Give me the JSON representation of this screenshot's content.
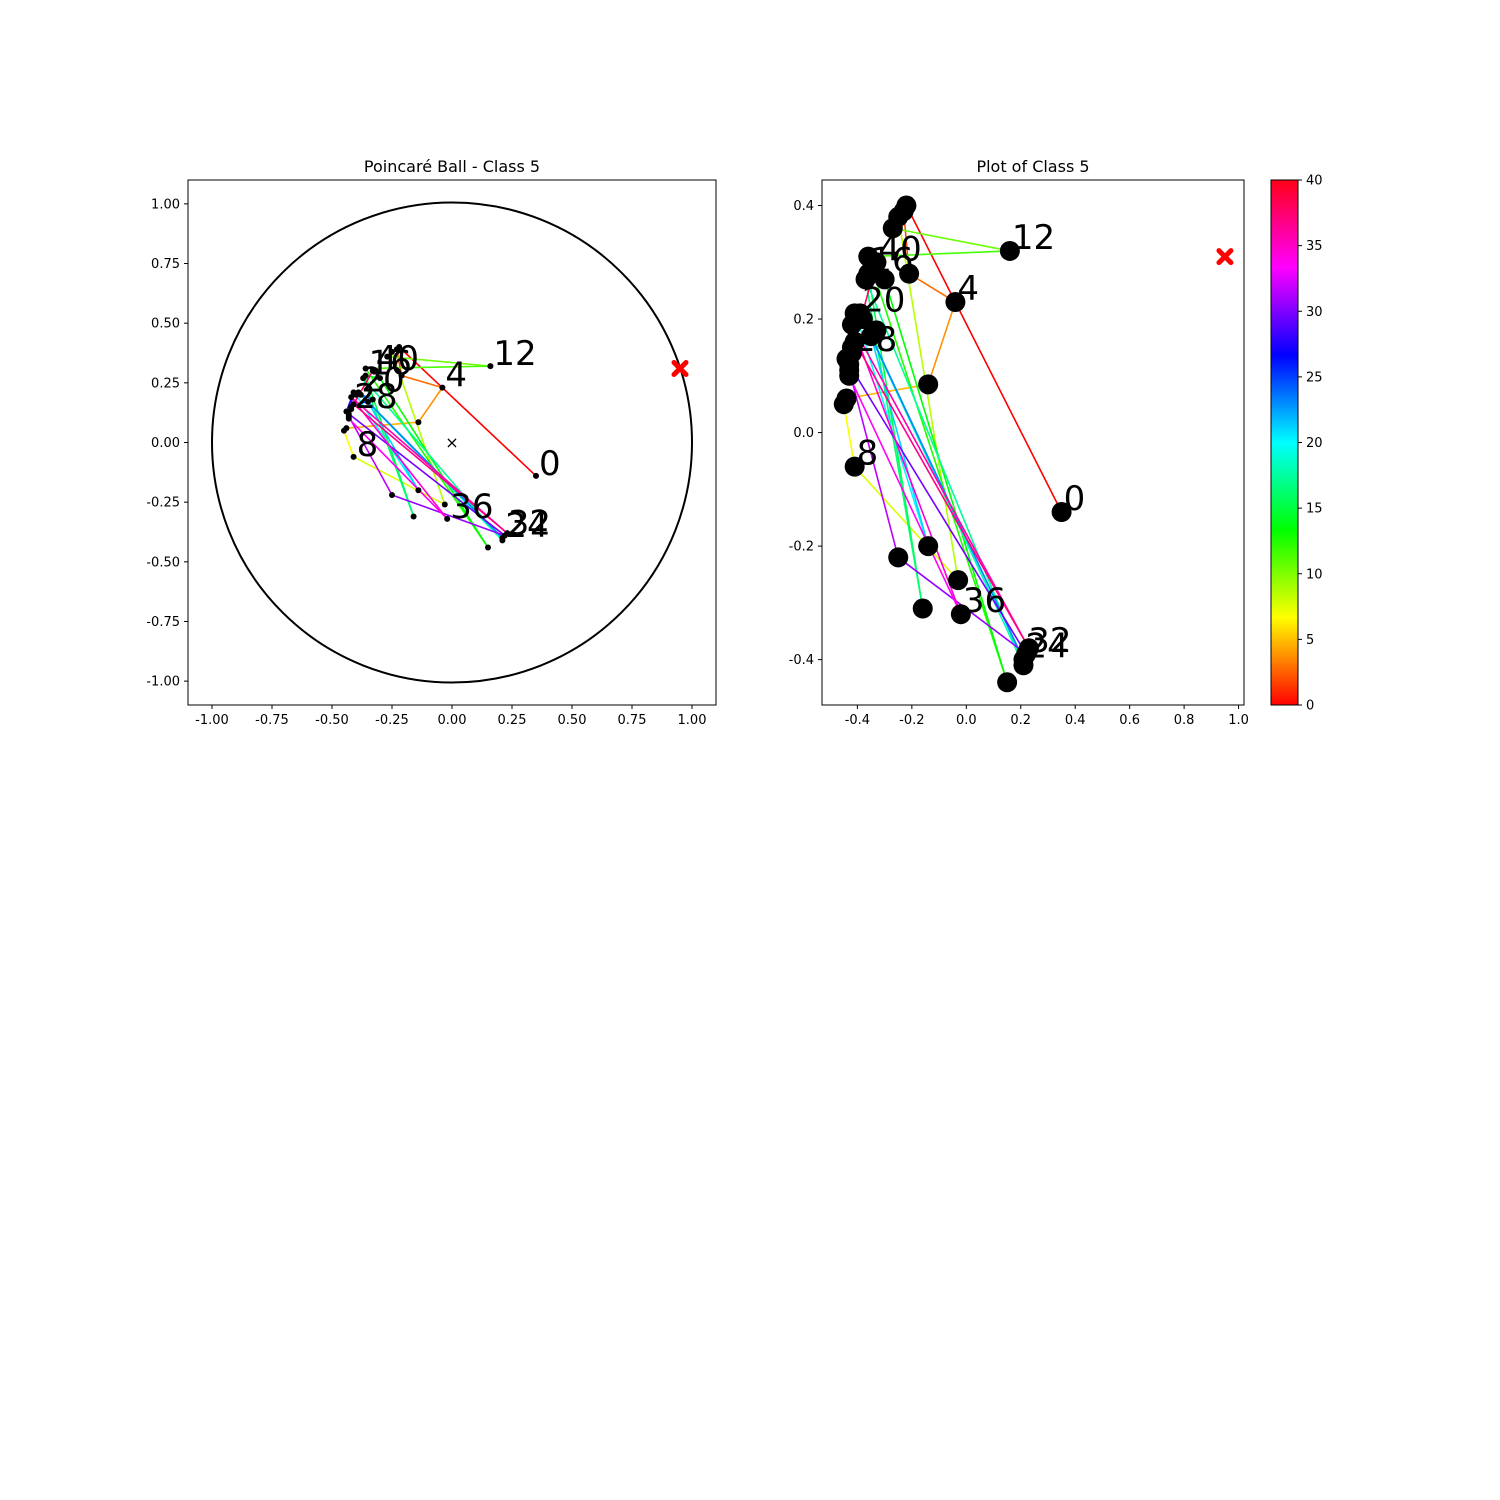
{
  "figure": {
    "background": "#ffffff",
    "colormap": "hsv",
    "marker_color": "#000000",
    "target_color": "#ff0000"
  },
  "chart_data": [
    {
      "type": "scatter",
      "title": "Poincaré Ball - Class 5",
      "xlabel": "",
      "ylabel": "",
      "xlim": [
        -1.1,
        1.1
      ],
      "ylim": [
        -1.1,
        1.1
      ],
      "xticks": [
        "-1.00",
        "-0.75",
        "-0.50",
        "-0.25",
        "0.00",
        "0.25",
        "0.50",
        "0.75",
        "1.00"
      ],
      "yticks": [
        "-1.00",
        "-0.75",
        "-0.50",
        "-0.25",
        "0.00",
        "0.25",
        "0.50",
        "0.75",
        "1.00"
      ],
      "grid": false,
      "unit_circle": true,
      "origin_marker": "x",
      "target_point": {
        "x": 0.95,
        "y": 0.31
      },
      "point_labels_every": 4
    },
    {
      "type": "scatter",
      "title": "Plot of Class 5",
      "xlabel": "",
      "ylabel": "",
      "xlim": [
        -0.53,
        1.02
      ],
      "ylim": [
        -0.48,
        0.445
      ],
      "xticks": [
        "-0.4",
        "-0.2",
        "0.0",
        "0.2",
        "0.4",
        "0.6",
        "0.8",
        "1.0"
      ],
      "yticks": [
        "-0.4",
        "-0.2",
        "0.0",
        "0.2",
        "0.4"
      ],
      "grid": false,
      "target_point": {
        "x": 0.95,
        "y": 0.31
      },
      "point_labels_every": 4,
      "colorbar": {
        "min": 0,
        "max": 40,
        "ticks": [
          "0",
          "5",
          "10",
          "15",
          "20",
          "25",
          "30",
          "35",
          "40"
        ]
      }
    }
  ],
  "trajectory": {
    "points": [
      {
        "i": 0,
        "x": 0.35,
        "y": -0.14
      },
      {
        "i": 1,
        "x": -0.22,
        "y": 0.4
      },
      {
        "i": 2,
        "x": -0.23,
        "y": 0.39
      },
      {
        "i": 3,
        "x": -0.21,
        "y": 0.28
      },
      {
        "i": 4,
        "x": -0.04,
        "y": 0.23
      },
      {
        "i": 5,
        "x": -0.14,
        "y": 0.085
      },
      {
        "i": 6,
        "x": -0.44,
        "y": 0.06
      },
      {
        "i": 7,
        "x": -0.45,
        "y": 0.05
      },
      {
        "i": 8,
        "x": -0.41,
        "y": -0.06
      },
      {
        "i": 9,
        "x": -0.03,
        "y": -0.26
      },
      {
        "i": 10,
        "x": -0.25,
        "y": 0.38
      },
      {
        "i": 11,
        "x": -0.27,
        "y": 0.36
      },
      {
        "i": 12,
        "x": 0.16,
        "y": 0.32
      },
      {
        "i": 13,
        "x": -0.36,
        "y": 0.31
      },
      {
        "i": 14,
        "x": 0.15,
        "y": -0.44
      },
      {
        "i": 15,
        "x": -0.3,
        "y": 0.27
      },
      {
        "i": 16,
        "x": -0.36,
        "y": 0.28
      },
      {
        "i": 17,
        "x": -0.16,
        "y": -0.31
      },
      {
        "i": 18,
        "x": -0.37,
        "y": 0.27
      },
      {
        "i": 19,
        "x": 0.21,
        "y": -0.41
      },
      {
        "i": 20,
        "x": -0.39,
        "y": 0.21
      },
      {
        "i": 21,
        "x": -0.4,
        "y": 0.2
      },
      {
        "i": 22,
        "x": -0.14,
        "y": -0.2
      },
      {
        "i": 23,
        "x": -0.35,
        "y": 0.17
      },
      {
        "i": 24,
        "x": 0.21,
        "y": -0.4
      },
      {
        "i": 25,
        "x": -0.38,
        "y": 0.2
      },
      {
        "i": 26,
        "x": -0.33,
        "y": 0.18
      },
      {
        "i": 27,
        "x": -0.42,
        "y": 0.15
      },
      {
        "i": 28,
        "x": -0.42,
        "y": 0.14
      },
      {
        "i": 29,
        "x": -0.44,
        "y": 0.13
      },
      {
        "i": 30,
        "x": -0.41,
        "y": 0.21
      },
      {
        "i": 31,
        "x": -0.43,
        "y": 0.12
      },
      {
        "i": 32,
        "x": 0.22,
        "y": -0.39
      },
      {
        "i": 33,
        "x": -0.25,
        "y": -0.22
      },
      {
        "i": 34,
        "x": -0.43,
        "y": 0.11
      },
      {
        "i": 35,
        "x": -0.43,
        "y": 0.1
      },
      {
        "i": 36,
        "x": -0.02,
        "y": -0.32
      },
      {
        "i": 37,
        "x": -0.42,
        "y": 0.19
      },
      {
        "i": 38,
        "x": 0.23,
        "y": -0.38
      },
      {
        "i": 39,
        "x": -0.41,
        "y": 0.16
      },
      {
        "i": 40,
        "x": -0.33,
        "y": 0.3
      }
    ]
  }
}
